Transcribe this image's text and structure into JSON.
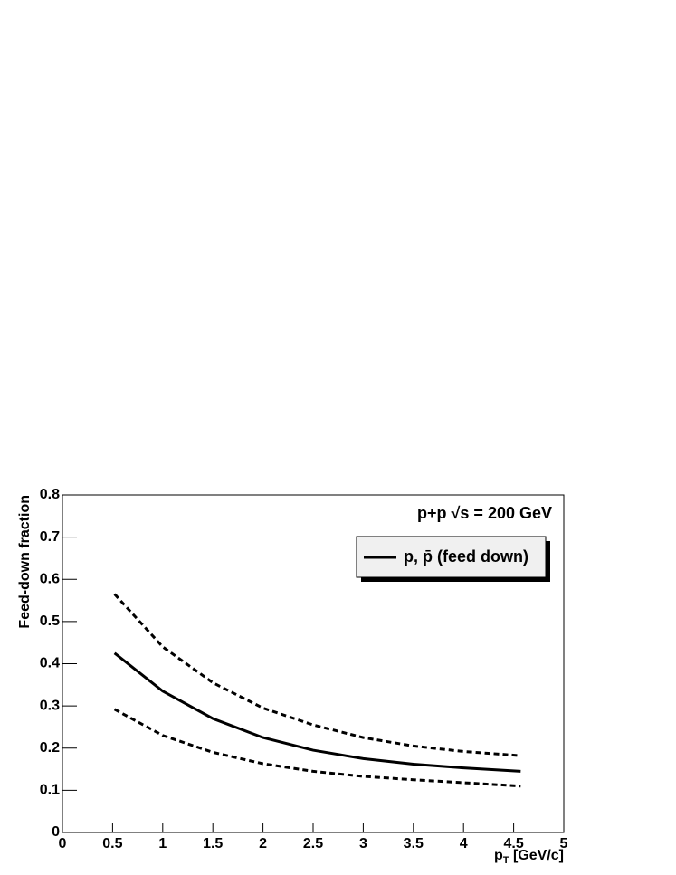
{
  "chart_data": {
    "type": "line",
    "annotation": "p+p √s = 200 GeV",
    "x_label": [
      "p",
      "T",
      " [GeV/c]"
    ],
    "y_label": "Feed-down fraction",
    "x": [
      0.52,
      1,
      1.5,
      2,
      2.5,
      3,
      3.5,
      4,
      4.57
    ],
    "series": [
      {
        "name": "p, p̄ (feed down)",
        "color": "#000000",
        "dash": "solid",
        "values": [
          0.425,
          0.335,
          0.27,
          0.225,
          0.195,
          0.175,
          0.162,
          0.153,
          0.145
        ]
      },
      {
        "color": "#000000",
        "dash": "dotted",
        "values": [
          0.565,
          0.44,
          0.355,
          0.295,
          0.255,
          0.225,
          0.205,
          0.192,
          0.182
        ]
      },
      {
        "color": "#000000",
        "dash": "dotted",
        "values": [
          0.292,
          0.23,
          0.19,
          0.163,
          0.145,
          0.133,
          0.125,
          0.118,
          0.11
        ]
      }
    ],
    "xlim": [
      0,
      5
    ],
    "ylim": [
      0,
      0.8
    ],
    "xticks": [
      0,
      0.5,
      1,
      1.5,
      2,
      2.5,
      3,
      3.5,
      4,
      4.5,
      5
    ],
    "yticks": [
      0,
      0.1,
      0.2,
      0.3,
      0.4,
      0.5,
      0.6,
      0.7,
      0.8
    ],
    "legend": "top-right"
  }
}
